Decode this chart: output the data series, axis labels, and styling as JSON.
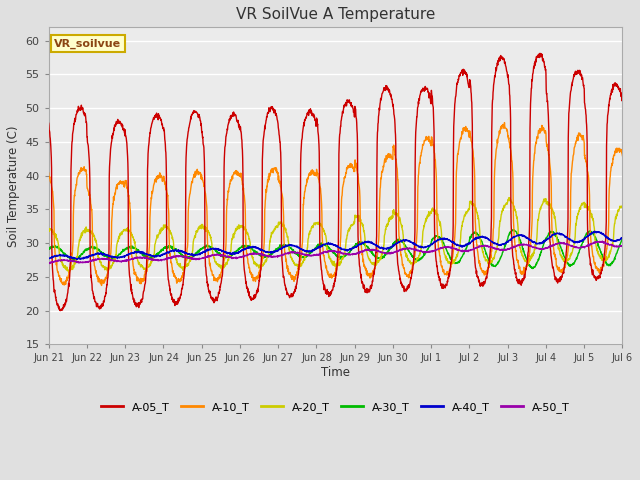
{
  "title": "VR SoilVue A Temperature",
  "xlabel": "Time",
  "ylabel": "Soil Temperature (C)",
  "ylim": [
    15,
    62
  ],
  "yticks": [
    15,
    20,
    25,
    30,
    35,
    40,
    45,
    50,
    55,
    60
  ],
  "background_color": "#e0e0e0",
  "plot_bg_color": "#ebebeb",
  "legend_label": "VR_soilvue",
  "series_colors": {
    "A-05_T": "#cc0000",
    "A-10_T": "#ff8800",
    "A-20_T": "#cccc00",
    "A-30_T": "#00bb00",
    "A-40_T": "#0000cc",
    "A-50_T": "#9900aa"
  },
  "x_tick_labels": [
    "Jun 21",
    "Jun 22",
    "Jun 23",
    "Jun 24",
    "Jun 25",
    "Jun 26",
    "Jun 27",
    "Jun 28",
    "Jun 29",
    "Jun 30",
    "Jul 1",
    "Jul 2",
    "Jul 3",
    "Jul 4",
    "Jul 5",
    "Jul 6"
  ],
  "n_days": 15,
  "pts_per_day": 144,
  "figwidth": 6.4,
  "figheight": 4.8,
  "dpi": 100
}
